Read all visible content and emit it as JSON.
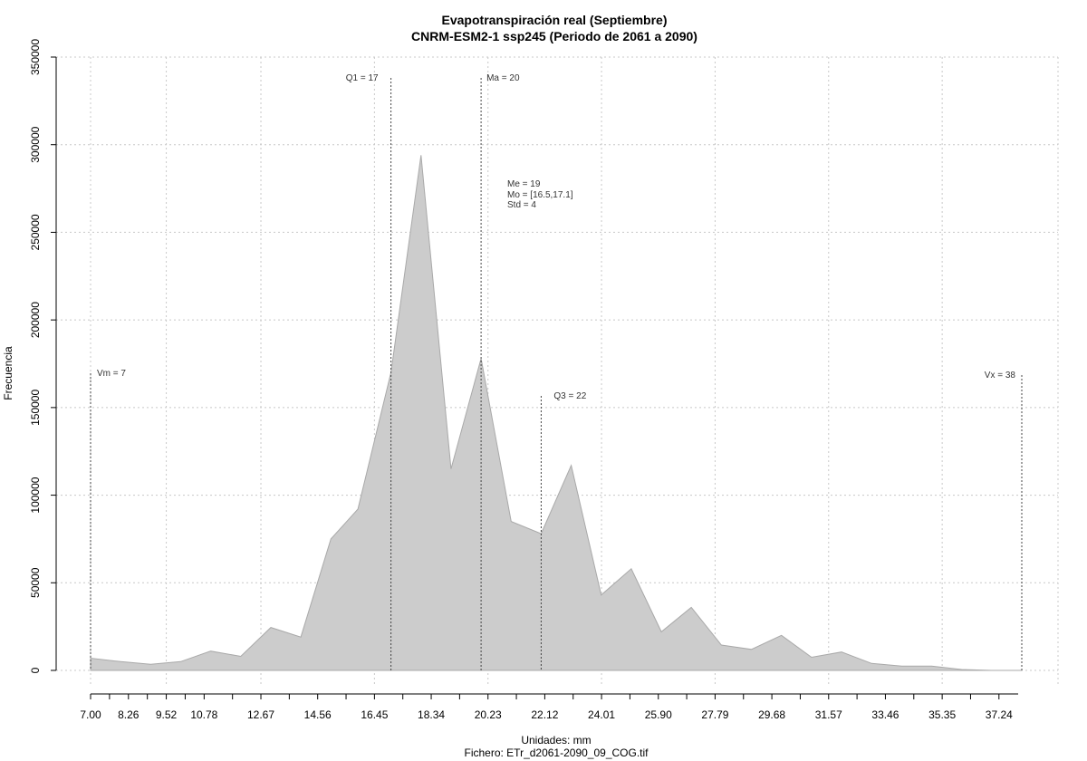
{
  "chart_data": {
    "type": "area",
    "title": "Evapotranspiración real (Septiembre)",
    "subtitle": "CNRM-ESM2-1 ssp245 (Periodo de 2061 a 2090)",
    "xlabel": "Unidades: mm",
    "footer": "Fichero: ETr_d2061-2090_09_COG.tif",
    "ylabel": "Frecuencia",
    "xlim": [
      7.0,
      38.0
    ],
    "ylim": [
      0,
      350000
    ],
    "grid": true,
    "fill_color": "#cccccc",
    "outline_color": "#a9a9a9",
    "x_tick_labels": [
      "7.00",
      "8.26",
      "9.52",
      "10.78",
      "12.67",
      "14.56",
      "16.45",
      "18.34",
      "20.23",
      "22.12",
      "24.01",
      "25.90",
      "27.79",
      "29.68",
      "31.57",
      "33.46",
      "35.35",
      "37.24"
    ],
    "x_tick_values": [
      7.0,
      8.26,
      9.52,
      10.78,
      12.67,
      14.56,
      16.45,
      18.34,
      20.23,
      22.12,
      24.01,
      25.9,
      27.79,
      29.68,
      31.57,
      33.46,
      35.35,
      37.24
    ],
    "y_ticks": [
      0,
      50000,
      100000,
      150000,
      200000,
      250000,
      300000,
      350000
    ],
    "y_tick_labels": [
      "0",
      "50000",
      "100000",
      "150000",
      "200000",
      "250000",
      "300000",
      "350000"
    ],
    "x": [
      7.0,
      8.0,
      9.0,
      10.0,
      11.0,
      12.0,
      13.0,
      14.0,
      15.0,
      15.9,
      17.0,
      18.0,
      19.0,
      20.0,
      21.0,
      22.0,
      23.0,
      24.0,
      25.0,
      26.0,
      27.0,
      28.0,
      29.0,
      30.0,
      31.0,
      32.0,
      33.0,
      34.0,
      35.0,
      36.0,
      37.0,
      38.0
    ],
    "y": [
      7000,
      5000,
      3500,
      5000,
      11000,
      8000,
      24500,
      19000,
      75000,
      92000,
      170000,
      294000,
      115000,
      178000,
      85000,
      78000,
      117000,
      43000,
      58000,
      22000,
      36000,
      14500,
      12000,
      20000,
      7500,
      10500,
      4000,
      2500,
      2500,
      500,
      0,
      0
    ],
    "markers": [
      {
        "label": "Vm = 7",
        "x": 7.0
      },
      {
        "label": "Q1 = 17",
        "x": 17.0
      },
      {
        "label": "Ma = 20",
        "x": 20.0
      },
      {
        "label": "Q3 = 22",
        "x": 22.0
      },
      {
        "label": "Vx = 38",
        "x": 38.0
      }
    ],
    "stats": [
      "Me = 19",
      "Mo = [16.5,17.1]",
      "Std = 4"
    ]
  }
}
